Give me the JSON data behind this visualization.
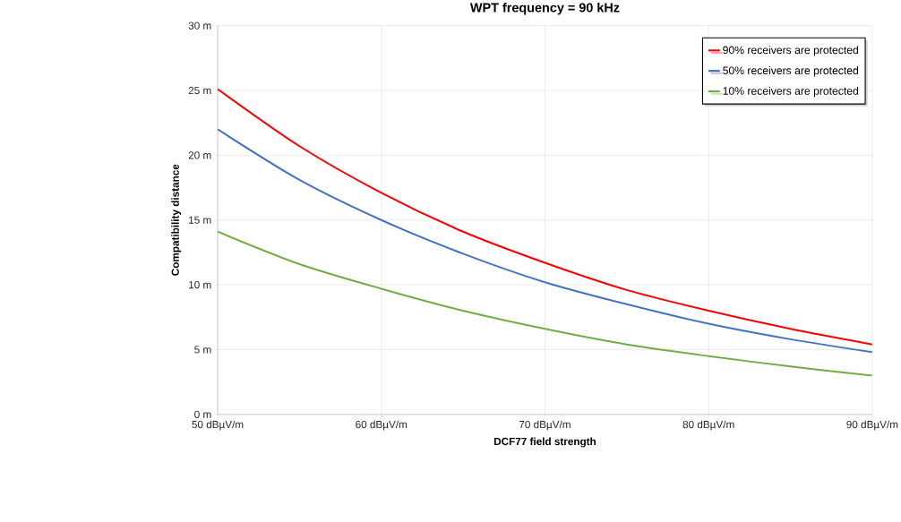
{
  "chart_data": {
    "type": "line",
    "title": "WPT frequency = 90 kHz",
    "xlabel": "DCF77 field strength",
    "ylabel": "Compatibility distance",
    "x": [
      50,
      55,
      60,
      65,
      70,
      75,
      80,
      85,
      90
    ],
    "series": [
      {
        "name": "90% receivers are protected",
        "color": "#ff0000",
        "values": [
          25.1,
          20.7,
          17.1,
          14.1,
          11.7,
          9.6,
          8.0,
          6.6,
          5.4
        ]
      },
      {
        "name": "50% receivers are protected",
        "color": "#4472c4",
        "values": [
          22.0,
          18.1,
          15.0,
          12.4,
          10.2,
          8.5,
          7.0,
          5.8,
          4.8
        ]
      },
      {
        "name": "10% receivers are protected",
        "color": "#70ad47",
        "values": [
          14.1,
          11.6,
          9.7,
          8.0,
          6.6,
          5.4,
          4.5,
          3.7,
          3.0
        ]
      }
    ],
    "xlim": [
      50,
      90
    ],
    "ylim": [
      0,
      30
    ],
    "xticks": [
      {
        "value": 50,
        "label": "50 dBµV/m"
      },
      {
        "value": 60,
        "label": "60 dBµV/m"
      },
      {
        "value": 70,
        "label": "70 dBµV/m"
      },
      {
        "value": 80,
        "label": "80 dBµV/m"
      },
      {
        "value": 90,
        "label": "90 dBµV/m"
      }
    ],
    "yticks": [
      {
        "value": 0,
        "label": "0 m"
      },
      {
        "value": 5,
        "label": "5 m"
      },
      {
        "value": 10,
        "label": "10 m"
      },
      {
        "value": 15,
        "label": "15 m"
      },
      {
        "value": 20,
        "label": "20 m"
      },
      {
        "value": 25,
        "label": "25 m"
      },
      {
        "value": 30,
        "label": "30 m"
      }
    ],
    "grid": true,
    "legend": "top right",
    "marker": "none",
    "line_style": "solid"
  }
}
